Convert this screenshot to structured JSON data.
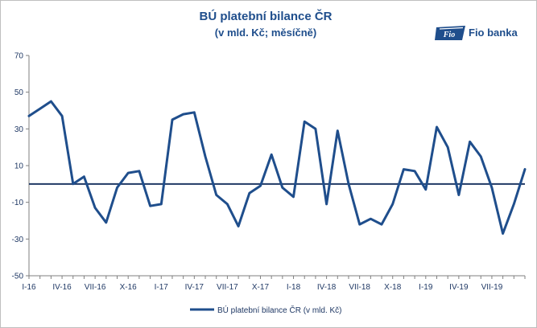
{
  "title": "BÚ platební bilance ČR",
  "subtitle": "(v mld. Kč; měsíčně)",
  "logo": {
    "text": "Fio banka",
    "mark_text": "Fio"
  },
  "colors": {
    "series": "#1f4e8c",
    "zero_line": "#1f3864",
    "text": "#1f3864"
  },
  "chart_data": {
    "type": "line",
    "title": "BÚ platební bilance ČR",
    "subtitle": "(v mld. Kč; měsíčně)",
    "ylim": [
      -50,
      70
    ],
    "yticks": [
      70,
      50,
      30,
      10,
      -10,
      -30,
      -50
    ],
    "ytick_labels": [
      "70",
      "50",
      "30",
      "10",
      "-10",
      "-30",
      "-50"
    ],
    "xtick_labels": [
      "I-16",
      "IV-16",
      "VII-16",
      "X-16",
      "I-17",
      "IV-17",
      "VII-17",
      "X-17",
      "I-18",
      "IV-18",
      "VII-18",
      "X-18",
      "I-19",
      "IV-19",
      "VII-19"
    ],
    "xtick_every": 3,
    "grid": false,
    "legend_position": "bottom",
    "series": [
      {
        "name": "BÚ platební bilance ČR (v mld. Kč)",
        "values": [
          37,
          41,
          45,
          37,
          0,
          4,
          -13,
          -21,
          -2,
          6,
          7,
          -12,
          -11,
          35,
          38,
          39,
          15,
          -6,
          -11,
          -23,
          -5,
          -1,
          16,
          -2,
          -7,
          34,
          30,
          -11,
          29,
          0,
          -22,
          -19,
          -22,
          -11,
          8,
          7,
          -3,
          31,
          20,
          -6,
          23,
          15,
          -2,
          -27,
          -11,
          8
        ]
      }
    ]
  },
  "legend": {
    "label": "BÚ platební bilance ČR (v mld. Kč)"
  }
}
